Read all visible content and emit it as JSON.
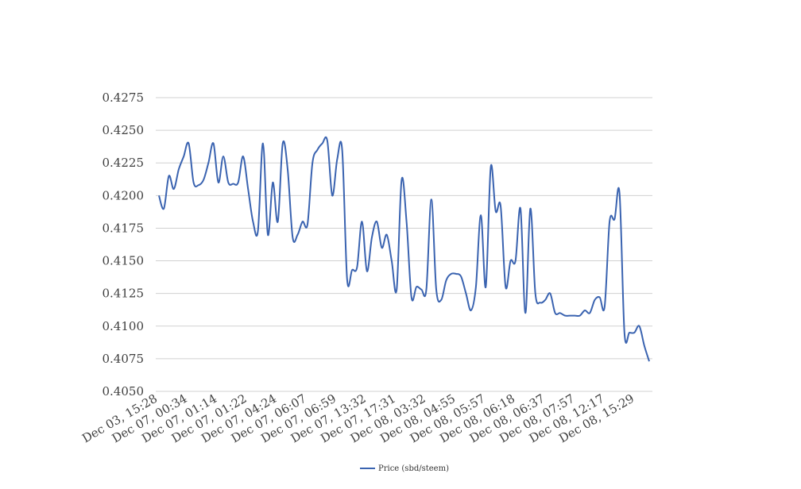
{
  "chart_data": {
    "type": "line",
    "title": "",
    "xlabel": "",
    "ylabel": "",
    "ylim": [
      0.405,
      0.4275
    ],
    "yticks": [
      "0.4050",
      "0.4075",
      "0.4100",
      "0.4125",
      "0.4150",
      "0.4175",
      "0.4200",
      "0.4225",
      "0.4250",
      "0.4275"
    ],
    "xticks": [
      "Dec 03, 15:28",
      "Dec 07, 00:34",
      "Dec 07, 01:14",
      "Dec 07, 01:22",
      "Dec 07, 04:24",
      "Dec 07, 06:07",
      "Dec 07, 06:59",
      "Dec 07, 13:32",
      "Dec 07, 17:31",
      "Dec 08, 03:32",
      "Dec 08, 04:55",
      "Dec 08, 05:57",
      "Dec 08, 06:18",
      "Dec 08, 06:37",
      "Dec 08, 07:57",
      "Dec 08, 12:17",
      "Dec 08, 15:29"
    ],
    "grid": true,
    "legend_position": "bottom",
    "series": [
      {
        "name": "Price (sbd/steem)",
        "color": "#3a63b0",
        "values": [
          0.42,
          0.419,
          0.4215,
          0.4205,
          0.422,
          0.423,
          0.424,
          0.421,
          0.4208,
          0.4212,
          0.4225,
          0.424,
          0.421,
          0.423,
          0.421,
          0.4209,
          0.421,
          0.423,
          0.4205,
          0.418,
          0.4173,
          0.424,
          0.417,
          0.421,
          0.418,
          0.424,
          0.422,
          0.4168,
          0.417,
          0.418,
          0.4178,
          0.4225,
          0.4235,
          0.424,
          0.4242,
          0.42,
          0.4228,
          0.4235,
          0.4136,
          0.4143,
          0.4145,
          0.418,
          0.4142,
          0.4168,
          0.418,
          0.416,
          0.417,
          0.415,
          0.4128,
          0.4212,
          0.418,
          0.4122,
          0.413,
          0.4128,
          0.4128,
          0.4197,
          0.4128,
          0.412,
          0.4135,
          0.414,
          0.414,
          0.4138,
          0.4125,
          0.4112,
          0.413,
          0.4185,
          0.413,
          0.4222,
          0.4188,
          0.4192,
          0.413,
          0.415,
          0.415,
          0.419,
          0.411,
          0.419,
          0.4125,
          0.4118,
          0.412,
          0.4125,
          0.411,
          0.411,
          0.4108,
          0.4108,
          0.4108,
          0.4108,
          0.4112,
          0.411,
          0.412,
          0.4122,
          0.4115,
          0.418,
          0.4182,
          0.4202,
          0.4095,
          0.4095,
          0.4095,
          0.41,
          0.4085,
          0.4073
        ]
      }
    ]
  }
}
